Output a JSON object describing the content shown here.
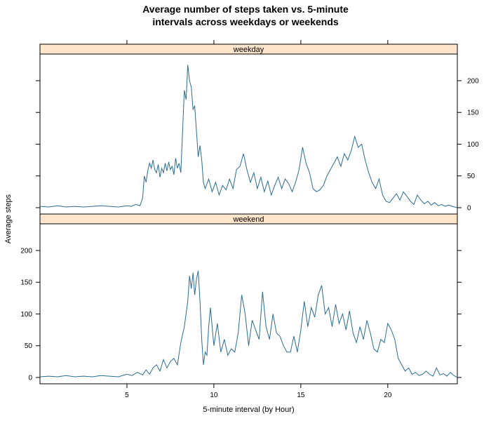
{
  "chart_data": {
    "type": "line",
    "title_line1": "Average number of steps taken vs. 5-minute",
    "title_line2": "intervals across weekdays or weekends",
    "xlabel": "5-minute interval (by Hour)",
    "ylabel": "Average steps",
    "xlim": [
      0,
      24
    ],
    "ylim": [
      -10,
      242
    ],
    "x_ticks": [
      5,
      10,
      15,
      20
    ],
    "y_ticks": [
      0,
      50,
      100,
      150,
      200
    ],
    "line_color": "#2b6c8f",
    "strip_color": "#ffe5cc",
    "panels": [
      {
        "name": "weekday",
        "x": [
          0,
          0.5,
          1,
          1.5,
          2,
          2.5,
          3,
          3.5,
          4,
          4.5,
          5,
          5.25,
          5.5,
          5.75,
          5.9,
          6.0,
          6.1,
          6.2,
          6.3,
          6.4,
          6.5,
          6.6,
          6.7,
          6.8,
          6.9,
          7.0,
          7.1,
          7.2,
          7.3,
          7.4,
          7.5,
          7.6,
          7.7,
          7.8,
          7.9,
          8.0,
          8.1,
          8.2,
          8.3,
          8.4,
          8.5,
          8.6,
          8.7,
          8.8,
          8.9,
          9.0,
          9.1,
          9.2,
          9.3,
          9.4,
          9.5,
          9.7,
          9.9,
          10.1,
          10.3,
          10.5,
          10.7,
          10.9,
          11.1,
          11.3,
          11.5,
          11.7,
          11.9,
          12.1,
          12.3,
          12.5,
          12.7,
          12.9,
          13.1,
          13.3,
          13.5,
          13.7,
          13.9,
          14.1,
          14.3,
          14.5,
          14.7,
          14.9,
          15.1,
          15.3,
          15.5,
          15.7,
          15.9,
          16.1,
          16.3,
          16.5,
          16.7,
          16.9,
          17.1,
          17.3,
          17.5,
          17.7,
          17.9,
          18.1,
          18.3,
          18.5,
          18.7,
          18.9,
          19.1,
          19.3,
          19.5,
          19.7,
          19.9,
          20.1,
          20.3,
          20.5,
          20.7,
          20.9,
          21.1,
          21.3,
          21.5,
          21.7,
          21.9,
          22.1,
          22.3,
          22.5,
          22.7,
          22.9,
          23.1,
          23.3,
          23.5,
          23.7,
          24
        ],
        "y": [
          2,
          1,
          3,
          1,
          2,
          1,
          2,
          3,
          2,
          1,
          3,
          2,
          5,
          3,
          15,
          50,
          40,
          58,
          70,
          62,
          75,
          60,
          55,
          68,
          48,
          62,
          55,
          70,
          58,
          72,
          60,
          65,
          52,
          78,
          62,
          70,
          55,
          120,
          185,
          170,
          225,
          200,
          190,
          155,
          160,
          120,
          80,
          98,
          75,
          40,
          30,
          45,
          25,
          40,
          20,
          35,
          28,
          45,
          30,
          60,
          65,
          85,
          60,
          40,
          55,
          30,
          48,
          25,
          42,
          20,
          35,
          48,
          30,
          45,
          38,
          25,
          40,
          60,
          95,
          70,
          55,
          30,
          25,
          28,
          35,
          50,
          60,
          70,
          80,
          65,
          85,
          75,
          90,
          112,
          95,
          100,
          75,
          55,
          40,
          30,
          45,
          20,
          10,
          8,
          15,
          22,
          12,
          25,
          18,
          10,
          5,
          20,
          12,
          6,
          10,
          4,
          8,
          3,
          5,
          2,
          4,
          2,
          0
        ]
      },
      {
        "name": "weekend",
        "x": [
          0,
          0.5,
          1,
          1.5,
          2,
          2.5,
          3,
          3.5,
          4,
          4.5,
          5,
          5.3,
          5.6,
          5.9,
          6.1,
          6.3,
          6.5,
          6.7,
          6.9,
          7.1,
          7.3,
          7.5,
          7.7,
          7.9,
          8.1,
          8.3,
          8.5,
          8.6,
          8.7,
          8.8,
          8.9,
          9.0,
          9.1,
          9.2,
          9.3,
          9.4,
          9.5,
          9.6,
          9.7,
          9.8,
          10.0,
          10.2,
          10.4,
          10.6,
          10.8,
          11.0,
          11.2,
          11.4,
          11.6,
          11.8,
          12.0,
          12.2,
          12.4,
          12.6,
          12.8,
          13.0,
          13.2,
          13.4,
          13.6,
          13.8,
          14.0,
          14.2,
          14.4,
          14.6,
          14.8,
          15.0,
          15.2,
          15.4,
          15.6,
          15.8,
          16.0,
          16.2,
          16.4,
          16.6,
          16.8,
          17.0,
          17.2,
          17.4,
          17.6,
          17.8,
          18.0,
          18.2,
          18.4,
          18.6,
          18.8,
          19.0,
          19.2,
          19.4,
          19.6,
          19.8,
          20.0,
          20.2,
          20.4,
          20.6,
          20.8,
          21.0,
          21.2,
          21.4,
          21.6,
          21.8,
          22.0,
          22.2,
          22.4,
          22.6,
          22.8,
          23.0,
          23.2,
          23.4,
          23.6,
          23.8,
          24
        ],
        "y": [
          1,
          2,
          1,
          3,
          1,
          2,
          1,
          3,
          2,
          1,
          5,
          3,
          8,
          4,
          12,
          5,
          15,
          20,
          10,
          28,
          15,
          25,
          30,
          20,
          55,
          80,
          120,
          160,
          140,
          165,
          130,
          155,
          168,
          120,
          60,
          20,
          40,
          35,
          80,
          110,
          50,
          85,
          40,
          60,
          35,
          45,
          40,
          70,
          130,
          100,
          50,
          90,
          75,
          60,
          135,
          80,
          60,
          100,
          70,
          65,
          50,
          40,
          40,
          65,
          40,
          75,
          120,
          80,
          110,
          95,
          130,
          145,
          100,
          110,
          80,
          115,
          85,
          100,
          75,
          105,
          70,
          55,
          80,
          60,
          90,
          70,
          45,
          40,
          60,
          55,
          85,
          75,
          60,
          30,
          20,
          10,
          15,
          5,
          8,
          3,
          5,
          10,
          5,
          2,
          15,
          4,
          6,
          2,
          8,
          3,
          0
        ]
      }
    ]
  }
}
